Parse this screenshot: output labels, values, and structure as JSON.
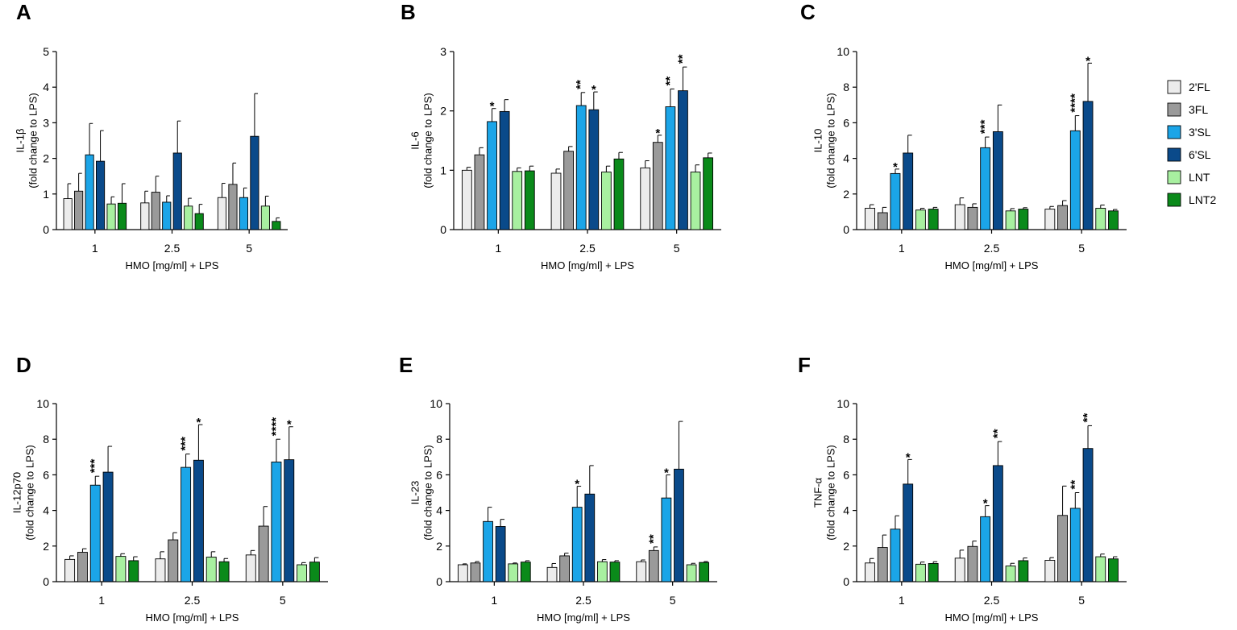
{
  "colors": {
    "2'FL": "#ececec",
    "3FL": "#9a9a9a",
    "3'SL": "#1ba5e8",
    "6'SL": "#0a4a8a",
    "LNT": "#a8f0a0",
    "LNT2": "#0a8a1a",
    "stroke": "#000000"
  },
  "legend": [
    "2'FL",
    "3FL",
    "3'SL",
    "6'SL",
    "LNT",
    "LNT2"
  ],
  "chart_data": [
    {
      "type": "bar",
      "panel": "A",
      "title": "",
      "categories": [
        "1",
        "2.5",
        "5"
      ],
      "xlabel": "HMO [mg/ml] + LPS",
      "ylabel": "IL-1β",
      "ylabel2": "(fold change to  LPS)",
      "ylim": [
        0,
        5
      ],
      "yticks": [
        "0",
        "1",
        "2",
        "3",
        "4",
        "5"
      ],
      "series": [
        {
          "name": "2'FL",
          "values": [
            0.87,
            0.75,
            0.9
          ],
          "errors": [
            0.42,
            0.33,
            0.4
          ]
        },
        {
          "name": "3FL",
          "values": [
            1.08,
            1.05,
            1.27
          ],
          "errors": [
            0.5,
            0.45,
            0.6
          ]
        },
        {
          "name": "3'SL",
          "values": [
            2.1,
            0.77,
            0.9
          ],
          "errors": [
            0.88,
            0.18,
            0.27
          ]
        },
        {
          "name": "6'SL",
          "values": [
            1.92,
            2.15,
            2.62
          ],
          "errors": [
            0.86,
            0.9,
            1.2
          ]
        },
        {
          "name": "LNT",
          "values": [
            0.72,
            0.66,
            0.66
          ],
          "errors": [
            0.2,
            0.22,
            0.28
          ]
        },
        {
          "name": "LNT2",
          "values": [
            0.74,
            0.45,
            0.23
          ],
          "errors": [
            0.55,
            0.26,
            0.1
          ]
        }
      ],
      "annotations": []
    },
    {
      "type": "bar",
      "panel": "B",
      "title": "",
      "categories": [
        "1",
        "2.5",
        "5"
      ],
      "xlabel": "HMO [mg/ml] + LPS",
      "ylabel": "IL-6",
      "ylabel2": "(fold change to  LPS)",
      "ylim": [
        0,
        3
      ],
      "yticks": [
        "0",
        "1",
        "2",
        "3"
      ],
      "series": [
        {
          "name": "2'FL",
          "values": [
            1.0,
            0.95,
            1.04
          ],
          "errors": [
            0.05,
            0.07,
            0.12
          ]
        },
        {
          "name": "3FL",
          "values": [
            1.26,
            1.32,
            1.47
          ],
          "errors": [
            0.12,
            0.08,
            0.12
          ]
        },
        {
          "name": "3'SL",
          "values": [
            1.82,
            2.09,
            2.07
          ],
          "errors": [
            0.22,
            0.22,
            0.3
          ]
        },
        {
          "name": "6'SL",
          "values": [
            1.99,
            2.02,
            2.34
          ],
          "errors": [
            0.2,
            0.3,
            0.4
          ]
        },
        {
          "name": "LNT",
          "values": [
            0.98,
            0.97,
            0.97
          ],
          "errors": [
            0.06,
            0.1,
            0.12
          ]
        },
        {
          "name": "LNT2",
          "values": [
            0.99,
            1.19,
            1.21
          ],
          "errors": [
            0.08,
            0.11,
            0.08
          ]
        }
      ],
      "annotations": [
        {
          "category": "1",
          "series": "3'SL",
          "text": "*"
        },
        {
          "category": "2.5",
          "series": "3'SL",
          "text": "**"
        },
        {
          "category": "2.5",
          "series": "6'SL",
          "text": "*"
        },
        {
          "category": "5",
          "series": "3FL",
          "text": "*"
        },
        {
          "category": "5",
          "series": "3'SL",
          "text": "**"
        },
        {
          "category": "5",
          "series": "6'SL",
          "text": "**"
        }
      ]
    },
    {
      "type": "bar",
      "panel": "C",
      "title": "",
      "categories": [
        "1",
        "2.5",
        "5"
      ],
      "xlabel": "HMO [mg/ml] + LPS",
      "ylabel": "IL-10",
      "ylabel2": "(fold change to  LPS)",
      "ylim": [
        0,
        10
      ],
      "yticks": [
        "0",
        "2",
        "4",
        "6",
        "8",
        "10"
      ],
      "series": [
        {
          "name": "2'FL",
          "values": [
            1.2,
            1.4,
            1.15
          ],
          "errors": [
            0.2,
            0.38,
            0.15
          ]
        },
        {
          "name": "3FL",
          "values": [
            0.95,
            1.25,
            1.35
          ],
          "errors": [
            0.3,
            0.2,
            0.28
          ]
        },
        {
          "name": "3'SL",
          "values": [
            3.15,
            4.6,
            5.55
          ],
          "errors": [
            0.25,
            0.6,
            0.85
          ]
        },
        {
          "name": "6'SL",
          "values": [
            4.3,
            5.5,
            7.2
          ],
          "errors": [
            1.0,
            1.5,
            2.15
          ]
        },
        {
          "name": "LNT",
          "values": [
            1.1,
            1.05,
            1.2
          ],
          "errors": [
            0.1,
            0.13,
            0.18
          ]
        },
        {
          "name": "LNT2",
          "values": [
            1.15,
            1.15,
            1.05
          ],
          "errors": [
            0.1,
            0.08,
            0.08
          ]
        }
      ],
      "annotations": [
        {
          "category": "1",
          "series": "3'SL",
          "text": "*"
        },
        {
          "category": "2.5",
          "series": "3'SL",
          "text": "***"
        },
        {
          "category": "5",
          "series": "3'SL",
          "text": "****"
        },
        {
          "category": "5",
          "series": "6'SL",
          "text": "*"
        }
      ]
    },
    {
      "type": "bar",
      "panel": "D",
      "title": "",
      "categories": [
        "1",
        "2.5",
        "5"
      ],
      "xlabel": "HMO [mg/ml] + LPS",
      "ylabel": "IL-12p70",
      "ylabel2": "(fold change to  LPS)",
      "ylim": [
        0,
        10
      ],
      "yticks": [
        "0",
        "2",
        "4",
        "6",
        "8",
        "10"
      ],
      "series": [
        {
          "name": "2'FL",
          "values": [
            1.25,
            1.28,
            1.5
          ],
          "errors": [
            0.2,
            0.4,
            0.25
          ]
        },
        {
          "name": "3FL",
          "values": [
            1.65,
            2.35,
            3.12
          ],
          "errors": [
            0.2,
            0.4,
            1.1
          ]
        },
        {
          "name": "3'SL",
          "values": [
            5.42,
            6.42,
            6.72
          ],
          "errors": [
            0.5,
            0.75,
            1.28
          ]
        },
        {
          "name": "6'SL",
          "values": [
            6.15,
            6.82,
            6.85
          ],
          "errors": [
            1.45,
            2.0,
            1.85
          ]
        },
        {
          "name": "LNT",
          "values": [
            1.42,
            1.38,
            0.95
          ],
          "errors": [
            0.15,
            0.3,
            0.12
          ]
        },
        {
          "name": "LNT2",
          "values": [
            1.18,
            1.12,
            1.1
          ],
          "errors": [
            0.22,
            0.18,
            0.25
          ]
        }
      ],
      "annotations": [
        {
          "category": "1",
          "series": "3'SL",
          "text": "***"
        },
        {
          "category": "2.5",
          "series": "3'SL",
          "text": "***"
        },
        {
          "category": "2.5",
          "series": "6'SL",
          "text": "*"
        },
        {
          "category": "5",
          "series": "3'SL",
          "text": "****"
        },
        {
          "category": "5",
          "series": "6'SL",
          "text": "*"
        }
      ]
    },
    {
      "type": "bar",
      "panel": "E",
      "title": "",
      "categories": [
        "1",
        "2.5",
        "5"
      ],
      "xlabel": "HMO [mg/ml] + LPS",
      "ylabel": "IL-23",
      "ylabel2": "(fold change to  LPS)",
      "ylim": [
        0,
        10
      ],
      "yticks": [
        "0",
        "2",
        "4",
        "6",
        "8",
        "10"
      ],
      "series": [
        {
          "name": "2'FL",
          "values": [
            0.95,
            0.8,
            1.12
          ],
          "errors": [
            0.05,
            0.22,
            0.1
          ]
        },
        {
          "name": "3FL",
          "values": [
            1.05,
            1.45,
            1.75
          ],
          "errors": [
            0.08,
            0.15,
            0.2
          ]
        },
        {
          "name": "3'SL",
          "values": [
            3.38,
            4.18,
            4.7
          ],
          "errors": [
            0.8,
            1.18,
            1.3
          ]
        },
        {
          "name": "6'SL",
          "values": [
            3.1,
            4.92,
            6.32
          ],
          "errors": [
            0.4,
            1.6,
            2.68
          ]
        },
        {
          "name": "LNT",
          "values": [
            1.0,
            1.12,
            0.95
          ],
          "errors": [
            0.05,
            0.12,
            0.08
          ]
        },
        {
          "name": "LNT2",
          "values": [
            1.1,
            1.1,
            1.08
          ],
          "errors": [
            0.08,
            0.08,
            0.05
          ]
        }
      ],
      "annotations": [
        {
          "category": "2.5",
          "series": "3'SL",
          "text": "*"
        },
        {
          "category": "5",
          "series": "3FL",
          "text": "**"
        },
        {
          "category": "5",
          "series": "3'SL",
          "text": "*"
        }
      ]
    },
    {
      "type": "bar",
      "panel": "F",
      "title": "",
      "categories": [
        "1",
        "2.5",
        "5"
      ],
      "xlabel": "HMO [mg/ml] + LPS",
      "ylabel": "TNF-α",
      "ylabel2": "(fold change to  LPS)",
      "ylim": [
        0,
        10
      ],
      "yticks": [
        "0",
        "2",
        "4",
        "6",
        "8",
        "10"
      ],
      "series": [
        {
          "name": "2'FL",
          "values": [
            1.05,
            1.32,
            1.2
          ],
          "errors": [
            0.25,
            0.45,
            0.15
          ]
        },
        {
          "name": "3FL",
          "values": [
            1.92,
            1.98,
            3.72
          ],
          "errors": [
            0.7,
            0.3,
            1.65
          ]
        },
        {
          "name": "3'SL",
          "values": [
            2.95,
            3.65,
            4.12
          ],
          "errors": [
            0.75,
            0.62,
            0.88
          ]
        },
        {
          "name": "6'SL",
          "values": [
            5.48,
            6.52,
            7.48
          ],
          "errors": [
            1.38,
            1.35,
            1.28
          ]
        },
        {
          "name": "LNT",
          "values": [
            0.98,
            0.88,
            1.4
          ],
          "errors": [
            0.12,
            0.15,
            0.15
          ]
        },
        {
          "name": "LNT2",
          "values": [
            1.02,
            1.18,
            1.28
          ],
          "errors": [
            0.1,
            0.15,
            0.12
          ]
        }
      ],
      "annotations": [
        {
          "category": "1",
          "series": "6'SL",
          "text": "*"
        },
        {
          "category": "2.5",
          "series": "3'SL",
          "text": "*"
        },
        {
          "category": "2.5",
          "series": "6'SL",
          "text": "**"
        },
        {
          "category": "5",
          "series": "3'SL",
          "text": "**"
        },
        {
          "category": "5",
          "series": "6'SL",
          "text": "**"
        }
      ]
    }
  ]
}
